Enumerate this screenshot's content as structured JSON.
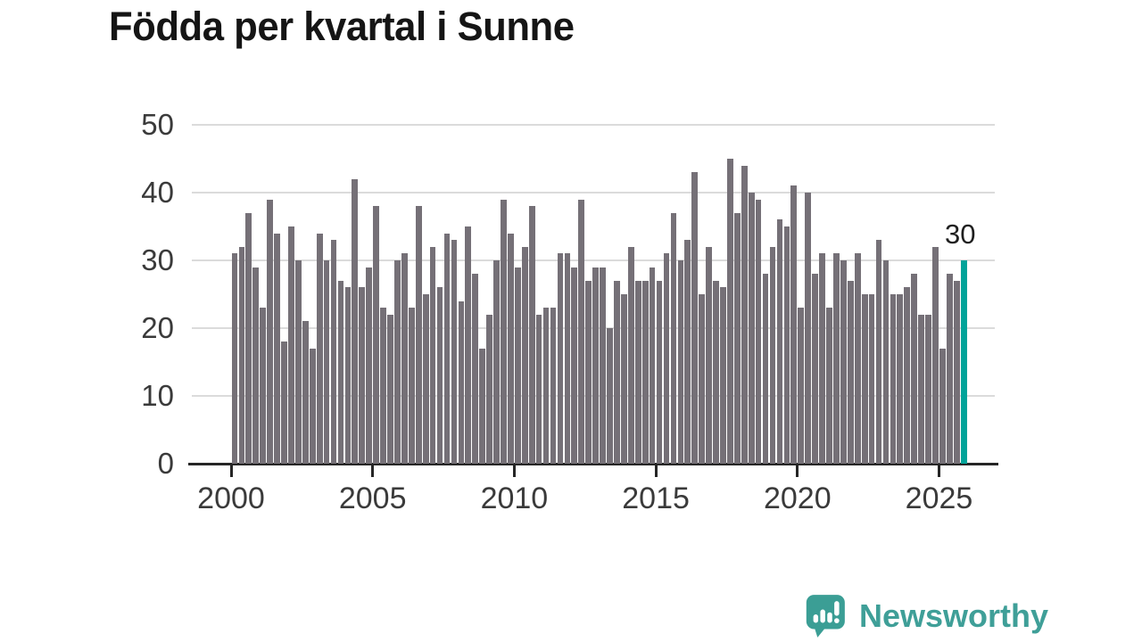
{
  "title": "Födda per kvartal i Sunne",
  "annotation": {
    "label": "30"
  },
  "branding": {
    "name": "Newsworthy",
    "color": "#3f9f98"
  },
  "colors": {
    "bar": "#757077",
    "highlight_bar": "#00a399",
    "gridline": "#dbdbdb",
    "axis": "#262626",
    "tick_text": "#3a3a3a",
    "title_text": "#151515"
  },
  "chart_data": {
    "type": "bar",
    "title": "Födda per kvartal i Sunne",
    "xlabel": "",
    "ylabel": "",
    "ylim": [
      0,
      50
    ],
    "y_ticks": [
      0,
      10,
      20,
      30,
      40,
      50
    ],
    "x_tick_labels": [
      "2000",
      "2005",
      "2010",
      "2015",
      "2020",
      "2025"
    ],
    "start_year": 2000,
    "frequency": "quarterly",
    "grid": "horizontal",
    "legend": "none",
    "highlight_last": true,
    "last_value_label": "30",
    "values": [
      31,
      32,
      37,
      29,
      23,
      39,
      34,
      18,
      35,
      30,
      21,
      17,
      34,
      30,
      33,
      27,
      26,
      42,
      26,
      29,
      38,
      23,
      22,
      30,
      31,
      23,
      38,
      25,
      32,
      26,
      34,
      33,
      24,
      35,
      28,
      17,
      22,
      30,
      39,
      34,
      29,
      32,
      38,
      22,
      23,
      23,
      31,
      31,
      29,
      39,
      27,
      29,
      29,
      20,
      27,
      25,
      32,
      27,
      27,
      29,
      27,
      31,
      37,
      30,
      33,
      43,
      25,
      32,
      27,
      26,
      45,
      37,
      44,
      40,
      39,
      28,
      32,
      36,
      35,
      41,
      23,
      40,
      28,
      31,
      23,
      31,
      30,
      27,
      31,
      25,
      25,
      33,
      30,
      25,
      25,
      26,
      28,
      22,
      22,
      32,
      17,
      28,
      27,
      30
    ]
  }
}
